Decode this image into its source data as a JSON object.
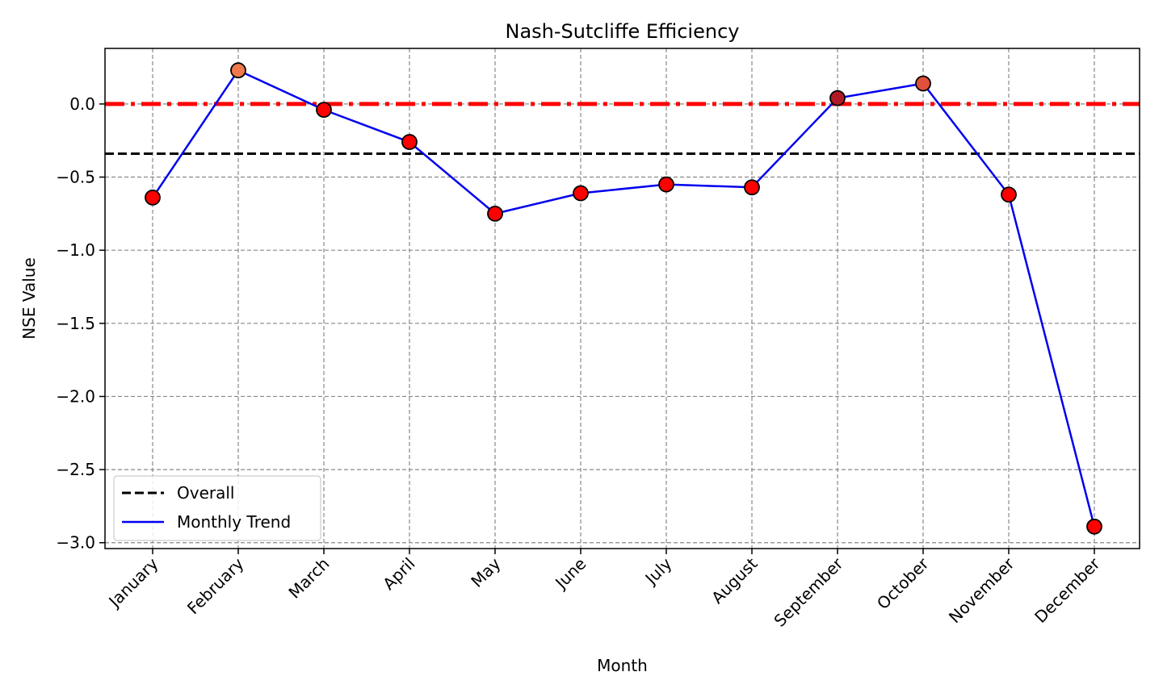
{
  "chart_data": {
    "type": "line",
    "title": "Nash-Sutcliffe Efficiency",
    "xlabel": "Month",
    "ylabel": "NSE Value",
    "categories": [
      "January",
      "February",
      "March",
      "April",
      "May",
      "June",
      "July",
      "August",
      "September",
      "October",
      "November",
      "December"
    ],
    "series": [
      {
        "name": "Monthly Trend",
        "values": [
          -0.64,
          0.23,
          -0.04,
          -0.26,
          -0.75,
          -0.61,
          -0.55,
          -0.57,
          0.04,
          0.14,
          -0.62,
          -2.89
        ],
        "line_color": "#0000ee",
        "marker_colors": [
          "#ff0000",
          "#f0784a",
          "#ff0000",
          "#ff0000",
          "#ff0000",
          "#ff0000",
          "#ff0000",
          "#ff0000",
          "#b01a26",
          "#e0503a",
          "#ff0000",
          "#ff0000"
        ]
      }
    ],
    "reference_lines": [
      {
        "name": "Overall",
        "value": -0.34,
        "color": "#000000",
        "style": "dashed"
      },
      {
        "name": "",
        "value": 0.0,
        "color": "#ff0000",
        "style": "dash-dot"
      }
    ],
    "y_ticks": [
      0.0,
      -0.5,
      -1.0,
      -1.5,
      -2.0,
      -2.5,
      -3.0
    ],
    "y_tick_labels": [
      "0.0",
      "−0.5",
      "−1.0",
      "−1.5",
      "−2.0",
      "−2.5",
      "−3.0"
    ],
    "ylim": [
      -3.04,
      0.38
    ],
    "grid": true,
    "legend": {
      "position": "lower-left",
      "entries": [
        {
          "label": "Overall",
          "color": "#000000",
          "style": "dashed"
        },
        {
          "label": "Monthly Trend",
          "color": "#0000ee",
          "style": "solid"
        }
      ]
    }
  }
}
